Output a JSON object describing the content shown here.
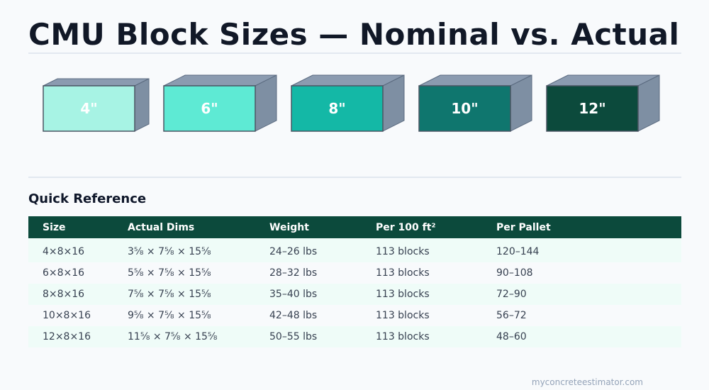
{
  "title": "CMU Block Sizes — Nominal vs. Actual",
  "blocks": [
    {
      "label": "4\"",
      "color": "#a7f3e4"
    },
    {
      "label": "6\"",
      "color": "#5eead4"
    },
    {
      "label": "8\"",
      "color": "#14b8a6"
    },
    {
      "label": "10\"",
      "color": "#0f766e"
    },
    {
      "label": "12\"",
      "color": "#0c4a3c"
    }
  ],
  "block_side_color": "#7e8fa3",
  "block_top_color": "#8b9bb0",
  "quick_reference": {
    "heading": "Quick Reference",
    "columns": [
      "Size",
      "Actual Dims",
      "Weight",
      "Per 100 ft²",
      "Per Pallet"
    ],
    "rows": [
      [
        "4×8×16",
        "3⅝ × 7⅝ × 15⅝",
        "24–26 lbs",
        "113 blocks",
        "120–144"
      ],
      [
        "6×8×16",
        "5⅝ × 7⅝ × 15⅝",
        "28–32 lbs",
        "113 blocks",
        "90–108"
      ],
      [
        "8×8×16",
        "7⅝ × 7⅝ × 15⅝",
        "35–40 lbs",
        "113 blocks",
        "72–90"
      ],
      [
        "10×8×16",
        "9⅝ × 7⅝ × 15⅝",
        "42–48 lbs",
        "113 blocks",
        "56–72"
      ],
      [
        "12×8×16",
        "11⅝ × 7⅝ × 15⅝",
        "50–55 lbs",
        "113 blocks",
        "48–60"
      ]
    ]
  },
  "footer": "myconcreteestimator.com"
}
